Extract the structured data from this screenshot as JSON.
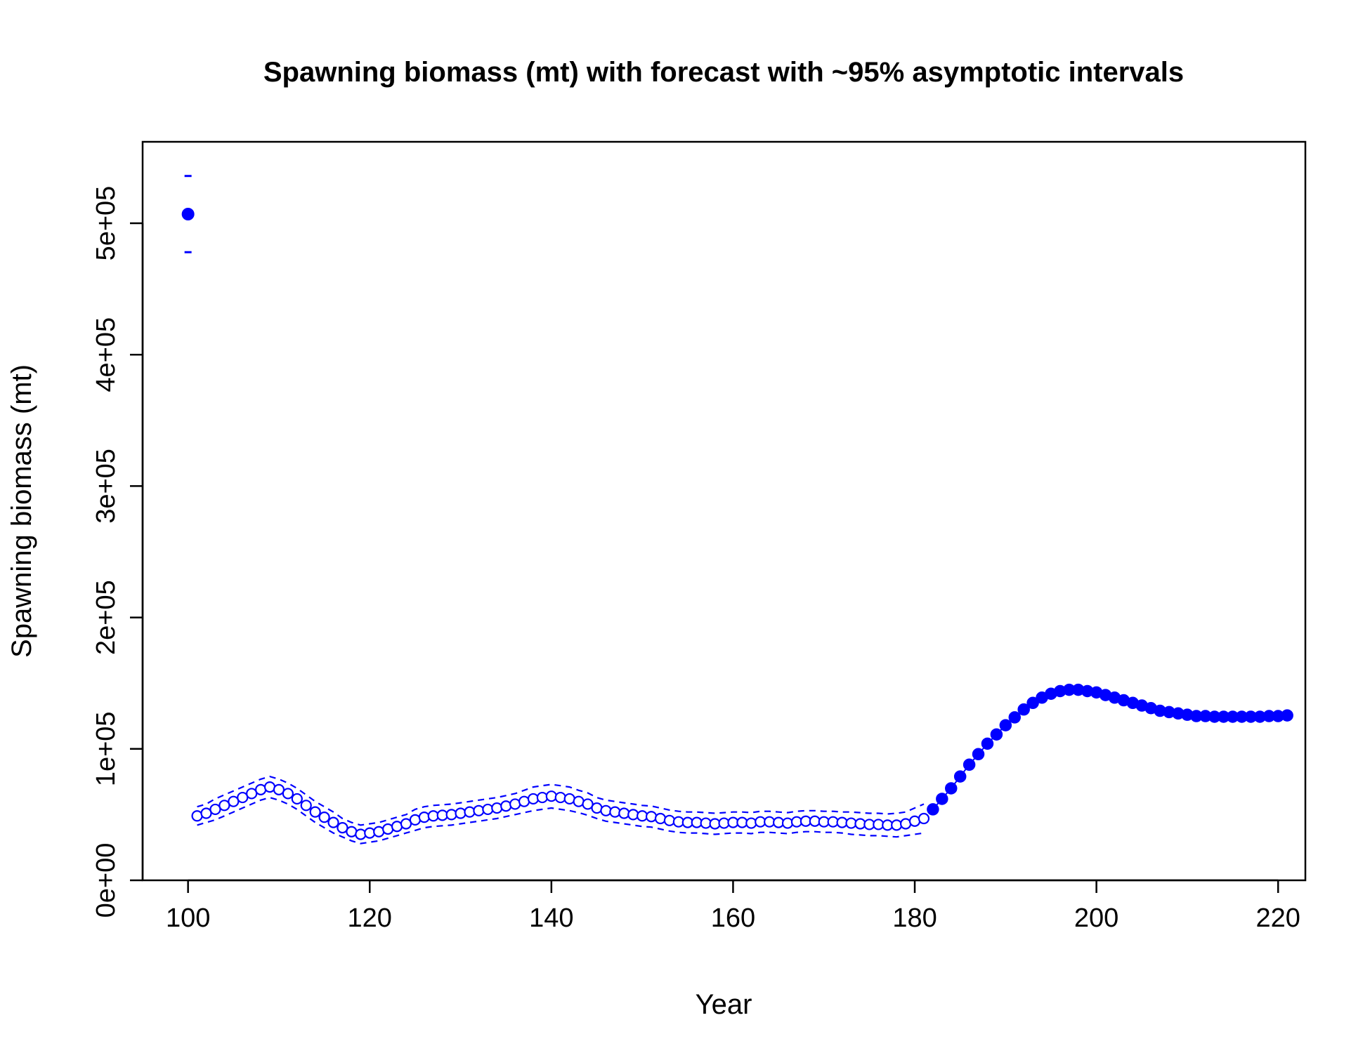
{
  "chart_data": {
    "type": "scatter",
    "title": "Spawning biomass (mt) with forecast with ~95% asymptotic intervals",
    "xlabel": "Year",
    "ylabel": "Spawning biomass (mt)",
    "xlim": [
      95,
      223
    ],
    "ylim": [
      0,
      562000
    ],
    "x_ticks": [
      100,
      120,
      140,
      160,
      180,
      200,
      220
    ],
    "x_tick_labels": [
      "100",
      "120",
      "140",
      "160",
      "180",
      "200",
      "220"
    ],
    "y_ticks": [
      0,
      100000,
      200000,
      300000,
      400000,
      500000
    ],
    "y_tick_labels": [
      "0e+00",
      "1e+05",
      "2e+05",
      "3e+05",
      "4e+05",
      "5e+05"
    ],
    "colors": {
      "series": "#0000ff",
      "axis": "#000000"
    },
    "virgin": {
      "x": 100,
      "y": 507000,
      "lower": 478000,
      "upper": 536000
    },
    "series": [
      {
        "style": "open-circle",
        "x": [
          101,
          102,
          103,
          104,
          105,
          106,
          107,
          108,
          109,
          110,
          111,
          112,
          113,
          114,
          115,
          116,
          117,
          118,
          119,
          120,
          121,
          122,
          123,
          124,
          125,
          126,
          127,
          128,
          129,
          130,
          131,
          132,
          133,
          134,
          135,
          136,
          137,
          138,
          139,
          140,
          141,
          142,
          143,
          144,
          145,
          146,
          147,
          148,
          149,
          150,
          151,
          152,
          153,
          154,
          155,
          156,
          157,
          158,
          159,
          160,
          161,
          162,
          163,
          164,
          165,
          166,
          167,
          168,
          169,
          170,
          171,
          172,
          173,
          174,
          175,
          176,
          177,
          178,
          179,
          180,
          181
        ],
        "values": [
          49000,
          51000,
          54000,
          57000,
          60000,
          63000,
          66000,
          69000,
          71000,
          69000,
          66000,
          62000,
          57000,
          52000,
          48000,
          44000,
          40000,
          37000,
          35000,
          36000,
          37000,
          39000,
          41000,
          43000,
          46000,
          48000,
          49000,
          49500,
          50000,
          51000,
          52000,
          53000,
          54000,
          55000,
          56500,
          58000,
          60000,
          62000,
          63000,
          64000,
          63000,
          62000,
          60000,
          58000,
          55000,
          53000,
          52000,
          51000,
          50000,
          49000,
          48500,
          47000,
          45500,
          44500,
          44000,
          44000,
          43500,
          43000,
          43500,
          44000,
          44000,
          43500,
          44500,
          44500,
          44000,
          43500,
          44500,
          45000,
          45000,
          44500,
          44500,
          44000,
          43500,
          43000,
          42500,
          42500,
          42000,
          42000,
          43000,
          45000,
          47000
        ],
        "lower": [
          42000,
          44000,
          46000,
          49000,
          52000,
          55000,
          58000,
          61000,
          63000,
          61000,
          58000,
          54000,
          49000,
          44000,
          40000,
          36000,
          33000,
          30000,
          28000,
          29000,
          30000,
          32000,
          34000,
          36000,
          38000,
          40000,
          41000,
          41500,
          42000,
          43000,
          44000,
          45000,
          46000,
          47000,
          48500,
          50000,
          51500,
          53000,
          54000,
          55000,
          54000,
          53000,
          51500,
          49500,
          47000,
          45000,
          44000,
          43000,
          42000,
          41000,
          40500,
          39000,
          37500,
          36500,
          36000,
          36000,
          35500,
          35000,
          35500,
          36000,
          36000,
          35500,
          36500,
          36500,
          36000,
          35500,
          36500,
          37000,
          37000,
          36500,
          36500,
          36000,
          35000,
          34500,
          34000,
          34000,
          33500,
          33000,
          34000,
          35000,
          36000
        ],
        "upper": [
          56000,
          58000,
          62000,
          65000,
          68000,
          71000,
          74000,
          77000,
          79000,
          77000,
          74000,
          70000,
          65000,
          60000,
          56000,
          52000,
          47000,
          44000,
          42000,
          43000,
          44000,
          46000,
          48000,
          50000,
          54000,
          56000,
          57000,
          57500,
          58000,
          59000,
          60000,
          61000,
          62000,
          63000,
          64500,
          66000,
          68500,
          71000,
          72000,
          73000,
          72000,
          71000,
          68500,
          66500,
          63000,
          61000,
          60000,
          59000,
          58000,
          57000,
          56500,
          55000,
          53500,
          52500,
          52000,
          52000,
          51500,
          51000,
          51500,
          52000,
          52000,
          51500,
          52500,
          52500,
          52000,
          51500,
          52500,
          53000,
          53000,
          52500,
          52500,
          52000,
          52000,
          51500,
          51000,
          51000,
          50500,
          51000,
          52000,
          55000,
          58000
        ]
      },
      {
        "style": "filled-circle",
        "x": [
          182,
          183,
          184,
          185,
          186,
          187,
          188,
          189,
          190,
          191,
          192,
          193,
          194,
          195,
          196,
          197,
          198,
          199,
          200,
          201,
          202,
          203,
          204,
          205,
          206,
          207,
          208,
          209,
          210,
          211,
          212,
          213,
          214,
          215,
          216,
          217,
          218,
          219,
          220,
          221
        ],
        "values": [
          54000,
          62000,
          70000,
          79000,
          88000,
          96000,
          104000,
          111000,
          118000,
          124000,
          130000,
          135000,
          139000,
          142000,
          144000,
          145000,
          145000,
          144000,
          143000,
          141000,
          139000,
          137000,
          135000,
          133000,
          131000,
          129000,
          128000,
          127000,
          126000,
          125000,
          125000,
          124500,
          124500,
          124500,
          124500,
          124500,
          124500,
          125000,
          125000,
          125500
        ]
      }
    ]
  }
}
